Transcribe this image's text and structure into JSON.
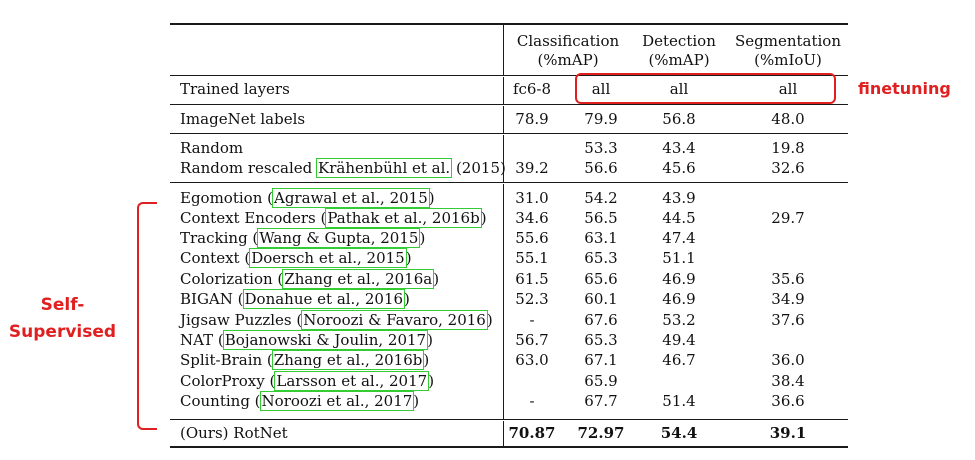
{
  "header": {
    "col1": [
      "Classification",
      "(%mAP)"
    ],
    "col2": [
      "Detection",
      "(%mAP)"
    ],
    "col3": [
      "Segmentation",
      "(%mIoU)"
    ]
  },
  "trained_layers": {
    "label": "Trained layers",
    "values": [
      "fc6-8",
      "all",
      "all",
      "all"
    ]
  },
  "imagenet": {
    "label": "ImageNet labels",
    "values": [
      "78.9",
      "79.9",
      "56.8",
      "48.0"
    ]
  },
  "baselines": [
    {
      "method": "Random",
      "cite": "",
      "tail": "",
      "values": [
        "",
        "53.3",
        "43.4",
        "19.8"
      ]
    },
    {
      "method": "Random rescaled ",
      "cite": "Krähenbühl et al.",
      "tail": " (2015)",
      "values": [
        "39.2",
        "56.6",
        "45.6",
        "32.6"
      ]
    }
  ],
  "methods": [
    {
      "method": "Egomotion (",
      "cite": "Agrawal et al., 2015",
      "tail": ")",
      "values": [
        "31.0",
        "54.2",
        "43.9",
        ""
      ]
    },
    {
      "method": "Context Encoders (",
      "cite": "Pathak et al., 2016b",
      "tail": ")",
      "values": [
        "34.6",
        "56.5",
        "44.5",
        "29.7"
      ]
    },
    {
      "method": "Tracking (",
      "cite": "Wang & Gupta, 2015",
      "tail": ")",
      "values": [
        "55.6",
        "63.1",
        "47.4",
        ""
      ]
    },
    {
      "method": "Context (",
      "cite": "Doersch et al., 2015",
      "tail": ")",
      "values": [
        "55.1",
        "65.3",
        "51.1",
        ""
      ]
    },
    {
      "method": "Colorization (",
      "cite": "Zhang et al., 2016a",
      "tail": ")",
      "values": [
        "61.5",
        "65.6",
        "46.9",
        "35.6"
      ]
    },
    {
      "method": "BIGAN (",
      "cite": "Donahue et al., 2016",
      "tail": ")",
      "values": [
        "52.3",
        "60.1",
        "46.9",
        "34.9"
      ]
    },
    {
      "method": "Jigsaw Puzzles (",
      "cite": "Noroozi & Favaro, 2016",
      "tail": ")",
      "values": [
        "-",
        "67.6",
        "53.2",
        "37.6"
      ]
    },
    {
      "method": "NAT (",
      "cite": "Bojanowski & Joulin, 2017",
      "tail": ")",
      "values": [
        "56.7",
        "65.3",
        "49.4",
        ""
      ]
    },
    {
      "method": "Split-Brain (",
      "cite": "Zhang et al., 2016b",
      "tail": ")",
      "values": [
        "63.0",
        "67.1",
        "46.7",
        "36.0"
      ]
    },
    {
      "method": "ColorProxy (",
      "cite": "Larsson et al., 2017",
      "tail": ")",
      "values": [
        "",
        "65.9",
        "",
        "38.4"
      ]
    },
    {
      "method": "Counting (",
      "cite": "Noroozi et al., 2017",
      "tail": ")",
      "values": [
        "-",
        "67.7",
        "51.4",
        "36.6"
      ]
    }
  ],
  "ours": {
    "label": "(Ours) RotNet",
    "values": [
      "70.87",
      "72.97",
      "54.4",
      "39.1"
    ]
  },
  "annotations": {
    "finetuning": "finetuning",
    "self_supervised": [
      "Self-",
      "Supervised"
    ],
    "accent_color": "#e02020",
    "citation_box_color": "#33cc33"
  }
}
